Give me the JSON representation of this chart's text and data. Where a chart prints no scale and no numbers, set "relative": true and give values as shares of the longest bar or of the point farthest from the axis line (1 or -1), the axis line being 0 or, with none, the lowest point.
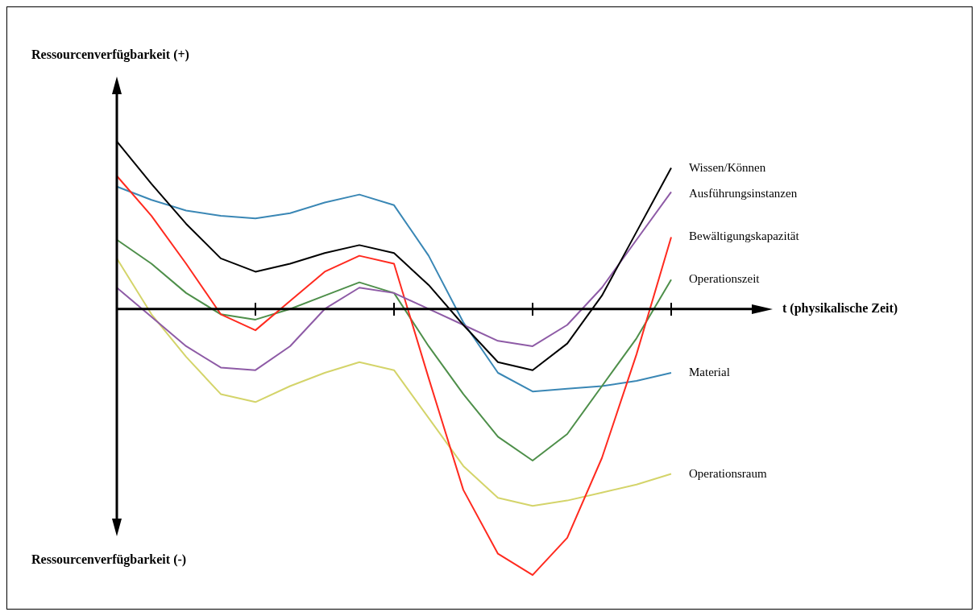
{
  "chart_data": {
    "type": "line",
    "relative": true,
    "annotations": [
      "Ressourcenverfügbarkeit (+)",
      "Ressourcenverfügbarkeit (-)",
      "t (physikalische Zeit)"
    ],
    "legend": false,
    "marker": "none",
    "categories": [
      null,
      null,
      null,
      null,
      null,
      null,
      null,
      null,
      null,
      null,
      null,
      null,
      null,
      null,
      null,
      null,
      null
    ],
    "series": [
      {
        "name": "Wissen/Können",
        "color": "#000000",
        "values": [
          0.63,
          0.47,
          0.32,
          0.19,
          0.14,
          0.17,
          0.21,
          0.24,
          0.21,
          0.09,
          -0.06,
          -0.2,
          -0.23,
          -0.13,
          0.05,
          0.29,
          0.53
        ]
      },
      {
        "name": "Ausführungsinstanzen",
        "color": "#8e5ba6",
        "values": [
          0.08,
          -0.03,
          -0.14,
          -0.22,
          -0.23,
          -0.14,
          0,
          0.08,
          0.06,
          0,
          -0.06,
          -0.12,
          -0.14,
          -0.06,
          0.08,
          0.26,
          0.44
        ]
      },
      {
        "name": "Bewältigungskapazität",
        "color": "#ff2a1f",
        "values": [
          0.5,
          0.35,
          0.17,
          -0.02,
          -0.08,
          0.03,
          0.14,
          0.2,
          0.17,
          -0.26,
          -0.68,
          -0.92,
          -1,
          -0.86,
          -0.56,
          -0.17,
          0.27
        ]
      },
      {
        "name": "Operationszeit",
        "color": "#4e8f4a",
        "values": [
          0.26,
          0.17,
          0.06,
          -0.02,
          -0.04,
          0,
          0.05,
          0.1,
          0.06,
          -0.14,
          -0.32,
          -0.48,
          -0.57,
          -0.47,
          -0.29,
          -0.11,
          0.11
        ]
      },
      {
        "name": "Material",
        "color": "#3a87b5",
        "values": [
          0.46,
          0.41,
          0.37,
          0.35,
          0.34,
          0.36,
          0.4,
          0.43,
          0.39,
          0.2,
          -0.05,
          -0.24,
          -0.31,
          -0.3,
          -0.29,
          -0.27,
          -0.24
        ]
      },
      {
        "name": "Operationsraum",
        "color": "#d4d46a",
        "values": [
          0.19,
          -0.02,
          -0.18,
          -0.32,
          -0.35,
          -0.29,
          -0.24,
          -0.2,
          -0.23,
          -0.41,
          -0.59,
          -0.71,
          -0.74,
          -0.72,
          -0.69,
          -0.66,
          -0.62
        ]
      }
    ]
  }
}
